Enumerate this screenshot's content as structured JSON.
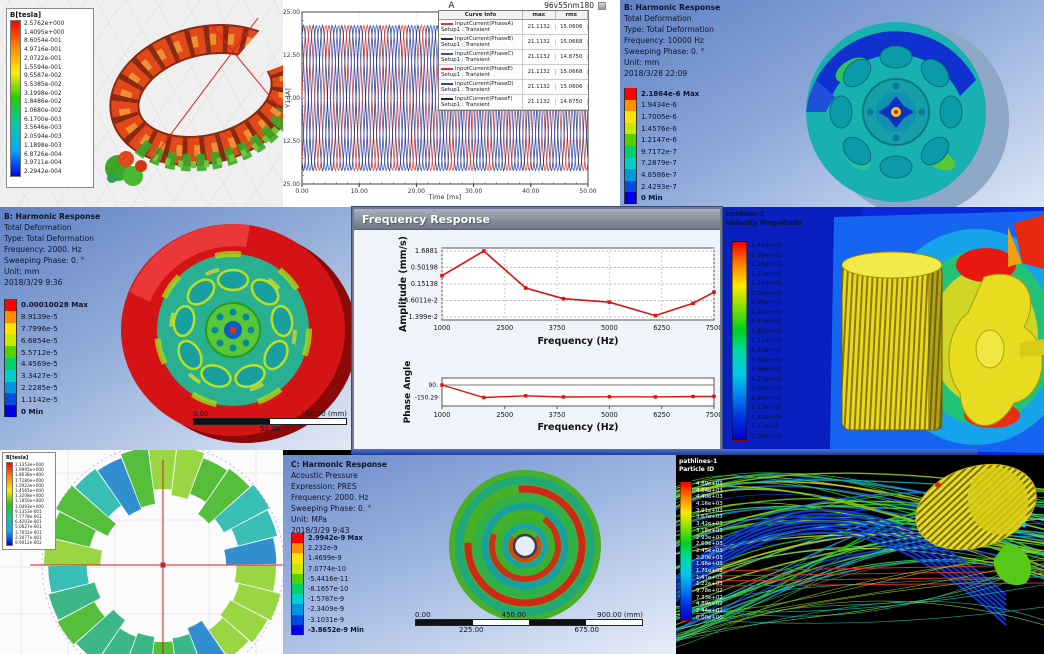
{
  "panels": {
    "maxwell_top": {
      "legend_title": "B[tesla]",
      "legend_values": [
        "2.5762e+000",
        "1.4095e+000",
        "8.6054e-001",
        "4.9716e-001",
        "2.0722e-001",
        "1.5594e-001",
        "9.5587e-002",
        "5.5385e-002",
        "3.1998e-002",
        "1.8486e-002",
        "1.0680e-002",
        "6.1700e-003",
        "3.5646e-003",
        "2.0594e-003",
        "1.1898e-003",
        "6.8726e-004",
        "3.9711e-004",
        "2.2942e-004"
      ]
    },
    "maxwell_bottom": {
      "legend_title": "B[tesla]",
      "legend_values": [
        "2.1353e+000",
        "1.9995e+000",
        "1.8638e+000",
        "1.7280e+000",
        "1.5923e+000",
        "1.4565e+000",
        "1.3208e+000",
        "1.1850e+000",
        "1.0493e+000",
        "9.1353e-001",
        "7.7778e-001",
        "6.4203e-001",
        "5.0627e-001",
        "3.7052e-001",
        "2.3477e-001",
        "9.9012e-002"
      ]
    },
    "harmonic_10000": {
      "header": [
        "B: Harmonic Response",
        "Total Deformation",
        "Type: Total Deformation",
        "Frequency: 10000 Hz",
        "Sweeping Phase: 0. °",
        "Unit: mm",
        "2018/3/28 22:09"
      ],
      "legend": [
        "2.1864e-6 Max",
        "1.9434e-6",
        "1.7005e-6",
        "1.4576e-6",
        "1.2147e-6",
        "9.7172e-7",
        "7.2879e-7",
        "4.8586e-7",
        "2.4293e-7",
        "0 Min"
      ]
    },
    "harmonic_2000": {
      "header": [
        "B: Harmonic Response",
        "Total Deformation",
        "Type: Total Deformation",
        "Frequency: 2000. Hz",
        "Sweeping Phase: 0. °",
        "Unit: mm",
        "2018/3/29 9:36"
      ],
      "legend": [
        "0.00010028 Max",
        "8.9139e-5",
        "7.7996e-5",
        "6.6854e-5",
        "5.5712e-5",
        "4.4569e-5",
        "3.3427e-5",
        "2.2285e-5",
        "1.1142e-5",
        "0 Min"
      ],
      "scale": {
        "left": "0.00",
        "right": "100.00 (mm)",
        "mid": "50.00"
      }
    },
    "acoustic": {
      "header": [
        "C: Harmonic Response",
        "Acoustic Pressure",
        "Expression: PRES",
        "Frequency: 2000. Hz",
        "Sweeping Phase: 0. °",
        "Unit: MPa",
        "2018/3/29 9:43"
      ],
      "legend": [
        "2.9942e-9 Max",
        "2.232e-9",
        "1.4699e-9",
        "7.0774e-10",
        "-5.4416e-11",
        "-8.1657e-10",
        "-1.5787e-9",
        "-2.3409e-9",
        "-3.1031e-9",
        "-3.8652e-9 Min"
      ],
      "scale": {
        "left": "0.00",
        "mid": "450.00",
        "right": "900.00 (mm)",
        "q1": "225.00",
        "q3": "675.00"
      }
    },
    "cfd_contour": {
      "header": [
        "contour-2",
        "Velocity Magnitude"
      ],
      "values": [
        "1.42e+01",
        "1.35e+01",
        "1.28e+01",
        "1.21e+01",
        "1.14e+01",
        "1.07e+01",
        "9.96e+00",
        "9.24e+00",
        "8.53e+00",
        "7.82e+00",
        "7.11e+00",
        "6.40e+00",
        "5.69e+00",
        "4.98e+00",
        "4.27e+00",
        "3.56e+00",
        "2.84e+00",
        "2.13e+00",
        "1.42e+00",
        "7.11e-01",
        "0.00e+00"
      ]
    },
    "pathlines": {
      "header": [
        "pathlines-1",
        "Particle ID"
      ],
      "values": [
        "4.89e+03",
        "4.64e+03",
        "4.40e+03",
        "4.16e+03",
        "3.91e+03",
        "3.67e+03",
        "3.42e+03",
        "3.18e+03",
        "2.93e+03",
        "2.69e+03",
        "2.45e+03",
        "2.20e+03",
        "1.96e+03",
        "1.71e+03",
        "1.47e+03",
        "1.22e+03",
        "9.78e+02",
        "7.33e+02",
        "4.89e+02",
        "2.44e+02",
        "0.00e+00"
      ]
    },
    "freq_window": {
      "title": "Frequency Response"
    }
  },
  "ansys_palette": [
    "#ff0000",
    "#ff8f00",
    "#ffe400",
    "#c8e800",
    "#58d000",
    "#00d06c",
    "#00d0c8",
    "#0096e0",
    "#004ce0",
    "#0000e0"
  ],
  "chart_data": [
    {
      "type": "line",
      "title": "A",
      "corner_label": "96v55nm180",
      "xlabel": "Time [ms]",
      "ylabel": "Y1 [A]",
      "xlim": [
        0,
        50
      ],
      "ylim": [
        -25,
        25
      ],
      "xticks": [
        "0.00",
        "10.00",
        "20.00",
        "30.00",
        "40.00",
        "50.00"
      ],
      "yticks": [
        "25.00",
        "12.50",
        "0.00",
        "-12.50",
        "-25.00"
      ],
      "amplitude": 21.1132,
      "period_ms": 3.3333,
      "legend_columns": [
        "Curve Info",
        "max",
        "rms"
      ],
      "series": [
        {
          "name": "InputCurrent(PhaseA)",
          "setup": "Setup1 : Transient",
          "max": "21.1132",
          "rms": "15.0606",
          "phase_deg": 0,
          "color": "#d43c3c"
        },
        {
          "name": "InputCurrent(PhaseB)",
          "setup": "Setup1 : Transient",
          "max": "21.1132",
          "rms": "15.0668",
          "phase_deg": -120,
          "color": "#1b2f7a"
        },
        {
          "name": "InputCurrent(PhaseC)",
          "setup": "Setup1 : Transient",
          "max": "21.1132",
          "rms": "14.8750",
          "phase_deg": -240,
          "color": "#3c50c8"
        },
        {
          "name": "InputCurrent(PhaseE)",
          "setup": "Setup1 : Transient",
          "max": "21.1132",
          "rms": "15.0668",
          "phase_deg": -60,
          "color": "#c83232"
        },
        {
          "name": "InputCurrent(PhaseD)",
          "setup": "Setup1 : Transient",
          "max": "21.1132",
          "rms": "15.0606",
          "phase_deg": -180,
          "color": "#2c46aa"
        },
        {
          "name": "InputCurrent(PhaseF)",
          "setup": "Setup1 : Transient",
          "max": "21.1132",
          "rms": "14.8750",
          "phase_deg": -300,
          "color": "#16265e"
        }
      ]
    },
    {
      "type": "line",
      "log_y": true,
      "ylabel": "Amplitude (mm/s)",
      "xlabel": "Frequency (Hz)",
      "x": [
        1000,
        2000,
        3000,
        3900,
        5000,
        6100,
        7000,
        7500
      ],
      "y": [
        0.28,
        1.6881,
        0.115,
        0.053,
        0.041,
        0.0155,
        0.038,
        0.085
      ],
      "ytick_labels": [
        "1.6881",
        "0.50198",
        "0.15138",
        "4.6011e-2",
        "1.399e-2"
      ],
      "xtick_labels": [
        "1000",
        "2500",
        "3750",
        "5000",
        "6250",
        "7500"
      ],
      "xlim": [
        1000,
        7500
      ],
      "color": "#e01010"
    },
    {
      "type": "line",
      "ylabel": "Phase Angle",
      "xlabel": "Frequency (Hz)",
      "x": [
        1000,
        2000,
        3000,
        3900,
        5000,
        6100,
        7000,
        7500
      ],
      "y": [
        90,
        -150.29,
        -118,
        -140,
        -136,
        -139,
        -131,
        -129
      ],
      "ytick_labels": [
        "90.",
        "-150.29"
      ],
      "xtick_labels": [
        "1000",
        "2500",
        "3750",
        "5000",
        "6250",
        "7500"
      ],
      "xlim": [
        1000,
        7500
      ],
      "color": "#e01010"
    }
  ]
}
